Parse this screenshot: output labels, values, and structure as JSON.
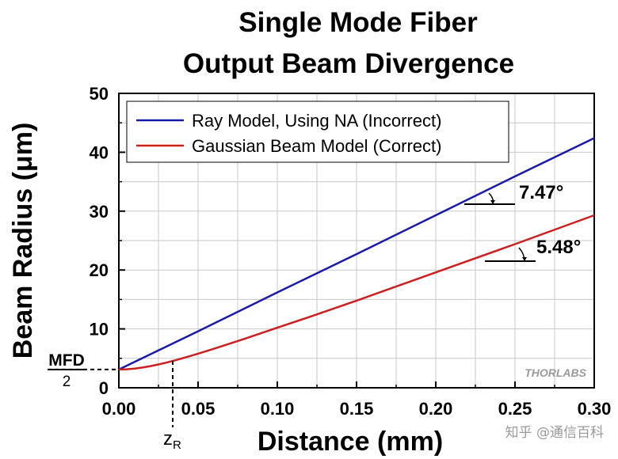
{
  "chart_data": {
    "type": "line",
    "title_line1": "Single Mode Fiber",
    "title_line2": "Output Beam Divergence",
    "xlabel": "Distance (mm)",
    "ylabel": "Beam Radius (μm)",
    "xlim": [
      0.0,
      0.3
    ],
    "ylim": [
      0,
      50
    ],
    "x_ticks": [
      0.0,
      0.05,
      0.1,
      0.15,
      0.2,
      0.25,
      0.3
    ],
    "x_tick_labels": [
      "0.00",
      "0.05",
      "0.10",
      "0.15",
      "0.20",
      "0.25",
      "0.30"
    ],
    "y_ticks": [
      0,
      10,
      20,
      30,
      40,
      50
    ],
    "y_tick_labels": [
      "0",
      "10",
      "20",
      "30",
      "40",
      "50"
    ],
    "grid": true,
    "legend_position": "top-left",
    "series": [
      {
        "name": "Ray Model, Using NA (Incorrect)",
        "color": "#1a1aa8",
        "x": [
          0.0,
          0.05,
          0.1,
          0.15,
          0.2,
          0.25,
          0.3
        ],
        "y": [
          3.1,
          9.6,
          16.2,
          22.7,
          29.3,
          35.9,
          42.4
        ]
      },
      {
        "name": "Gaussian Beam Model (Correct)",
        "color": "#cc1f1f",
        "x": [
          0.0,
          0.005,
          0.01,
          0.015,
          0.02,
          0.025,
          0.03,
          0.035,
          0.04,
          0.05,
          0.06,
          0.08,
          0.1,
          0.12,
          0.15,
          0.2,
          0.25,
          0.3
        ],
        "y": [
          3.1,
          3.14,
          3.26,
          3.44,
          3.68,
          3.96,
          4.28,
          4.63,
          5.0,
          5.79,
          6.62,
          8.38,
          10.2,
          12.0,
          14.8,
          19.6,
          24.4,
          29.3
        ]
      }
    ],
    "annotations": {
      "mfd_numerator": "MFD",
      "mfd_denominator": "2",
      "mfd_value": 3.1,
      "zr_label": "z",
      "zr_subscript": "R",
      "zr_value": 0.034,
      "angle_blue": "7.47°",
      "angle_red": "5.48°"
    },
    "watermark_logo": "THORLABS",
    "watermark_text": "知乎 @通信百科"
  }
}
